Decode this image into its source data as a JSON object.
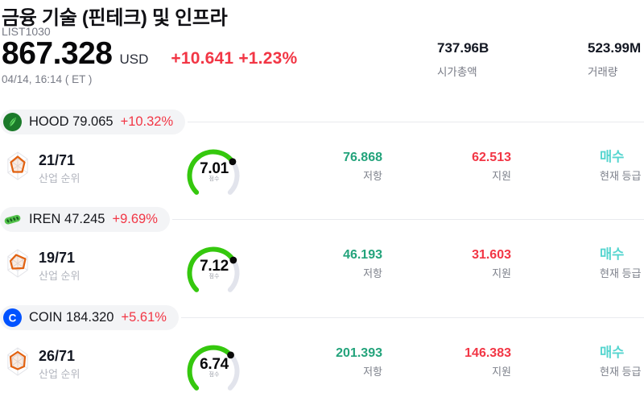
{
  "header": {
    "title": "금융 기술 (핀테크) 및 인프라",
    "list_id": "LIST1030",
    "price": "867.328",
    "currency": "USD",
    "change": "+10.641 +1.23%",
    "datetime": "04/14, 16:14 ( ET )",
    "market_cap": {
      "value": "737.96B",
      "label": "시가총액"
    },
    "volume": {
      "value": "523.99M",
      "label": "거래량"
    }
  },
  "labels": {
    "rank": "산업 순위",
    "resistance": "저항",
    "support": "지원",
    "rating": "현재 등급"
  },
  "gauge": {
    "label": "점수",
    "max": 10
  },
  "rows": [
    {
      "ticker": "HOOD",
      "price": "79.065",
      "change": "+10.32%",
      "logo": "robinhood-logo",
      "rank": "21/71",
      "score": 7.01,
      "resistance": "76.868",
      "support": "62.513",
      "rating": "매수"
    },
    {
      "ticker": "IREN",
      "price": "47.245",
      "change": "+9.69%",
      "logo": "iren-logo",
      "rank": "19/71",
      "score": 7.12,
      "resistance": "46.193",
      "support": "31.603",
      "rating": "매수"
    },
    {
      "ticker": "COIN",
      "price": "184.320",
      "change": "+5.61%",
      "logo": "coinbase-logo",
      "rank": "26/71",
      "score": 6.74,
      "resistance": "201.393",
      "support": "146.383",
      "rating": "매수"
    }
  ],
  "colors": {
    "change_red": "#f23645",
    "resistance_green": "#23a37b",
    "rating_cyan": "#55d5cf",
    "gauge_green": "#35c80e",
    "gauge_track": "#e2e4ec",
    "coinbase_blue": "#0052ff",
    "robinhood_green": "#1b7a2a",
    "iren_green": "#53c24b"
  },
  "row_tops": [
    136,
    257,
    379
  ]
}
